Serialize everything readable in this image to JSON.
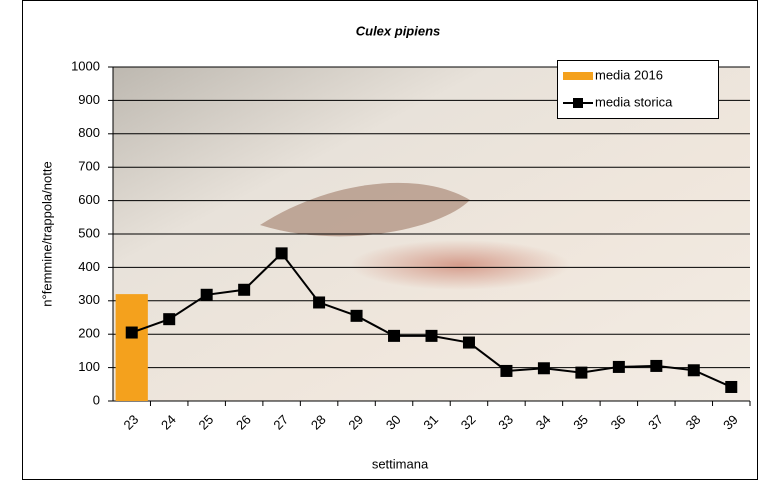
{
  "chart_data": {
    "type": "bar",
    "title": "Culex pipiens",
    "x_label": "settimana",
    "y_label": "n°femmine/trappola/notte",
    "categories": [
      "23",
      "24",
      "25",
      "26",
      "27",
      "28",
      "29",
      "30",
      "31",
      "32",
      "33",
      "34",
      "35",
      "36",
      "37",
      "38",
      "39"
    ],
    "series": [
      {
        "name": "media 2016",
        "type": "bar",
        "color": "#f4a11d",
        "values": [
          320,
          null,
          null,
          null,
          null,
          null,
          null,
          null,
          null,
          null,
          null,
          null,
          null,
          null,
          null,
          null,
          null
        ]
      },
      {
        "name": "media storica",
        "type": "line",
        "color": "#000000",
        "values": [
          205,
          245,
          318,
          333,
          442,
          295,
          255,
          195,
          195,
          175,
          90,
          98,
          85,
          102,
          105,
          92,
          42
        ]
      }
    ],
    "ylim": [
      0,
      1000
    ],
    "yticks": [
      0,
      100,
      200,
      300,
      400,
      500,
      600,
      700,
      800,
      900,
      1000
    ],
    "grid": true,
    "legend": "upper right"
  }
}
